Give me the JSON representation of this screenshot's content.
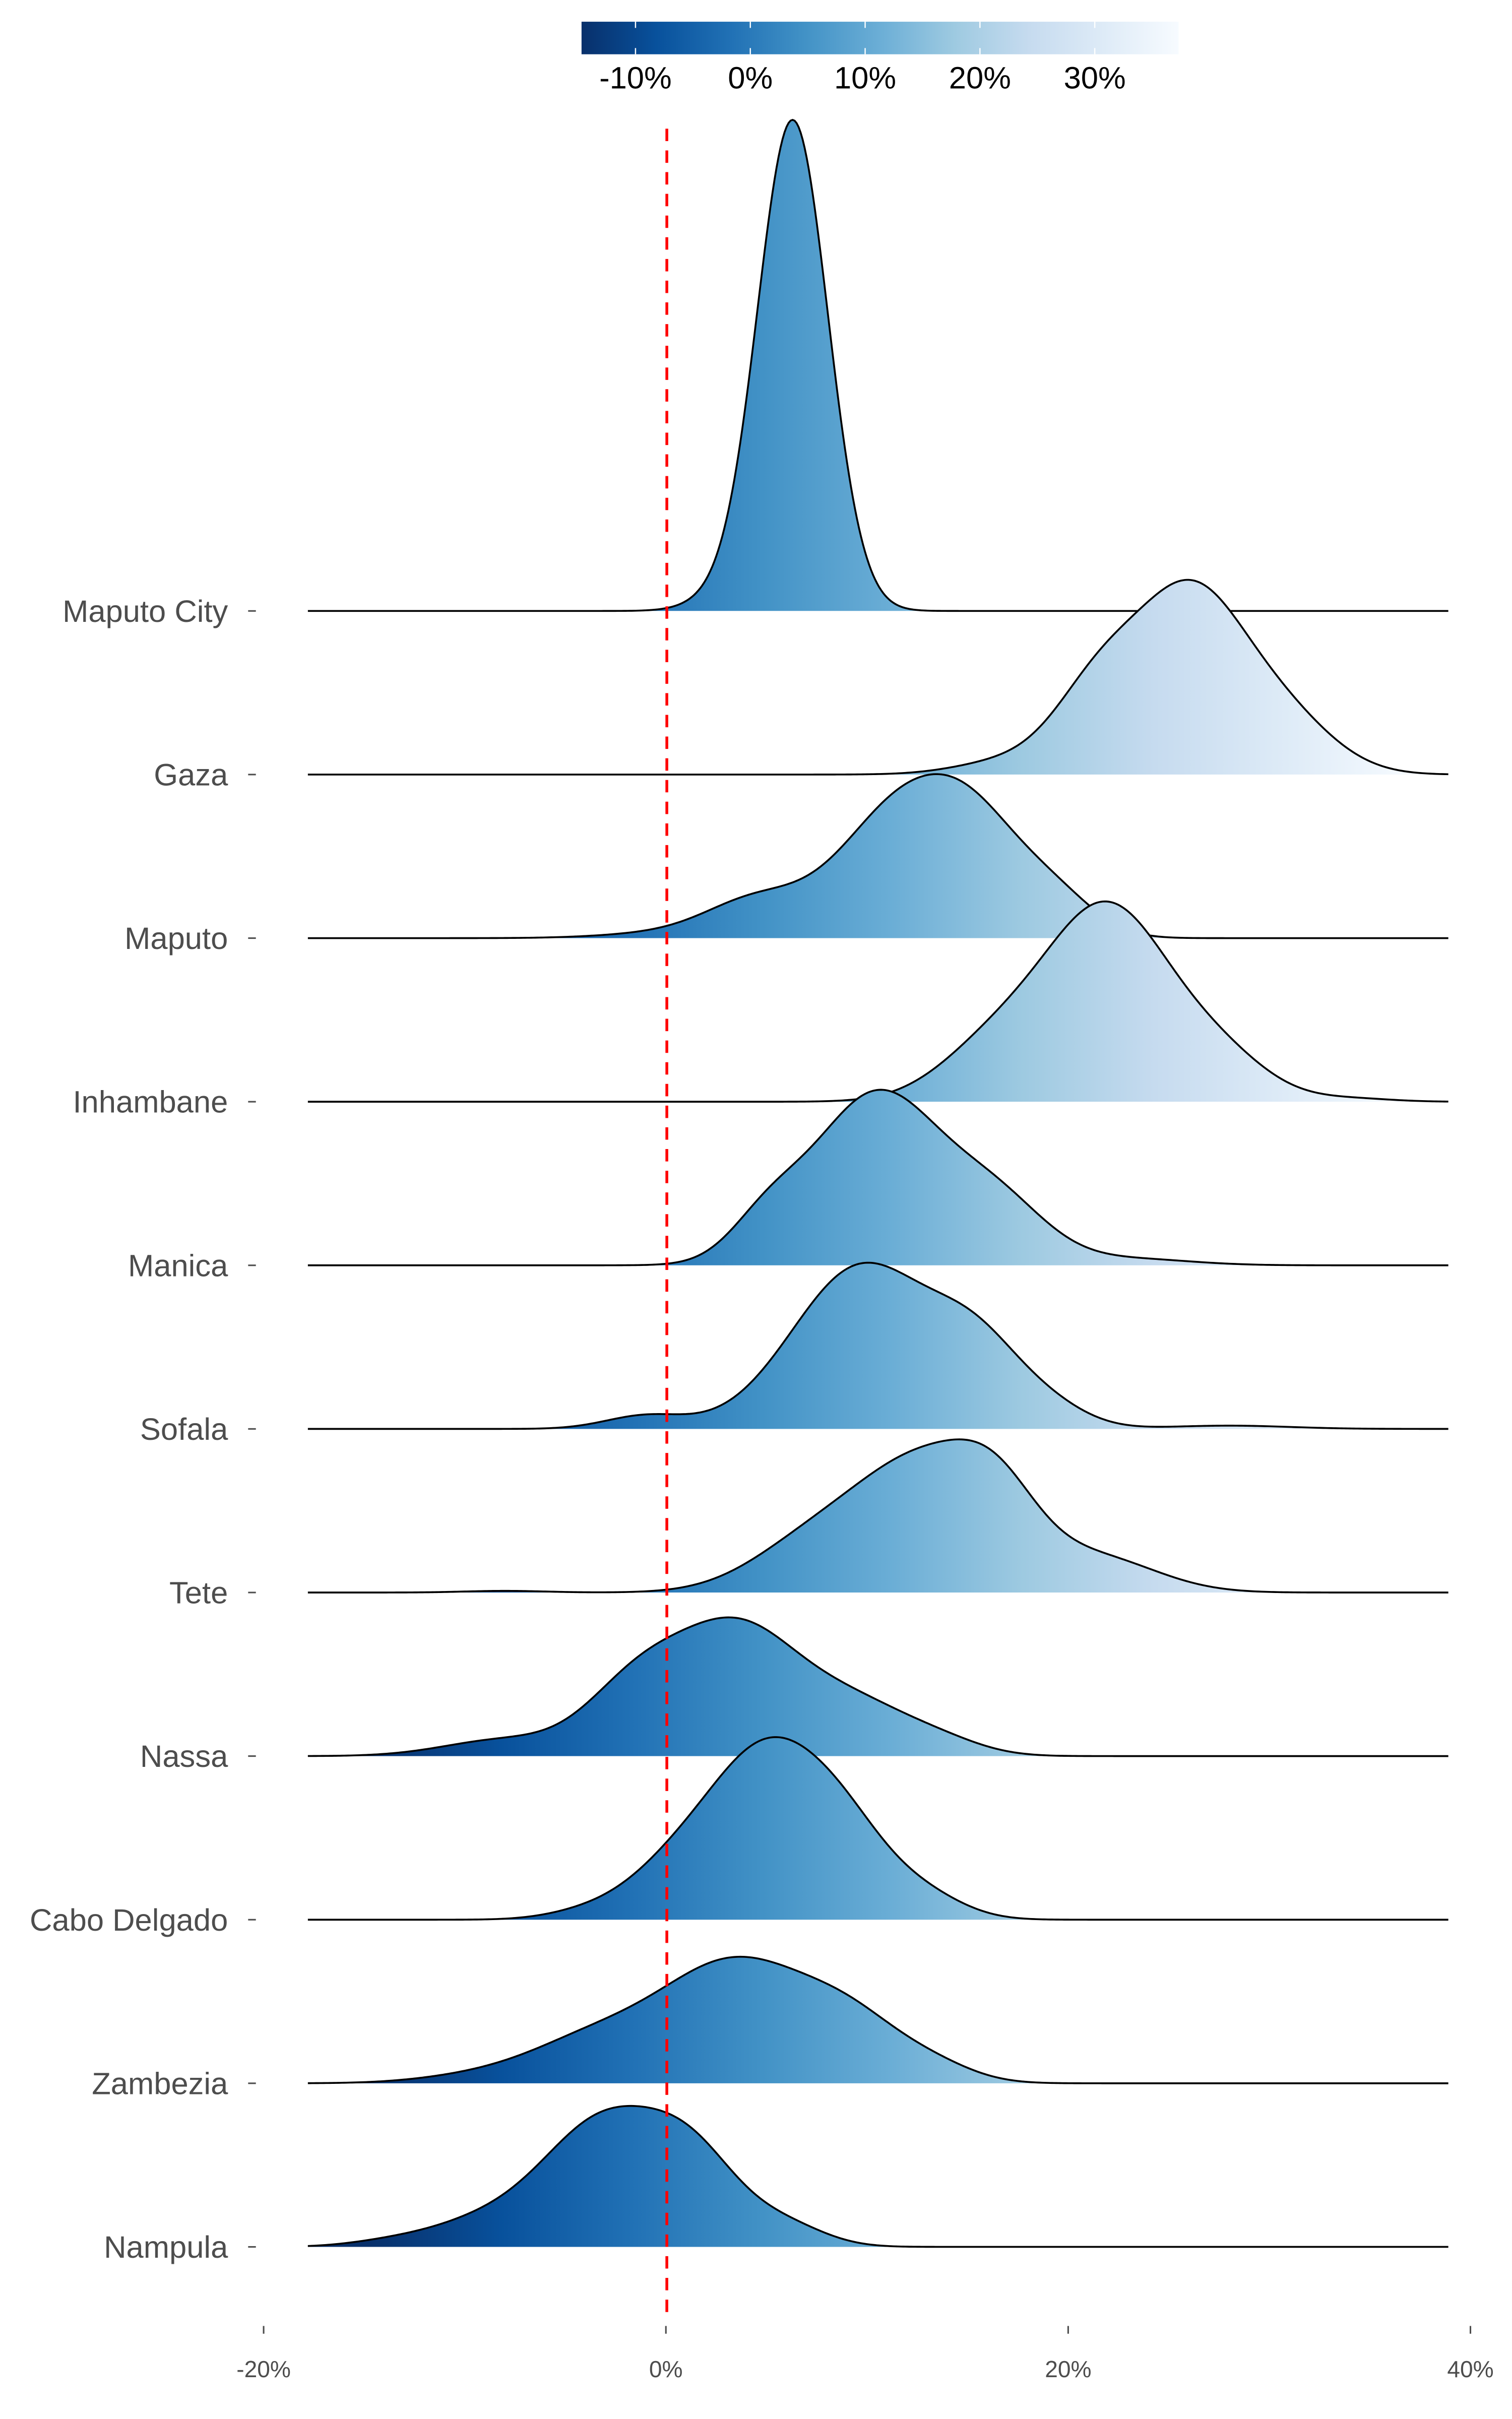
{
  "chart_data": {
    "type": "ridgeline",
    "title": "",
    "xlabel": "",
    "ylabel": "",
    "xlim": [
      -20,
      40
    ],
    "x_range_drawn": [
      -17.8,
      38.9
    ],
    "x_ticks": [
      "-20%",
      "0%",
      "20%",
      "40%"
    ],
    "x_tick_values": [
      -20,
      0,
      20,
      40
    ],
    "reference_line": {
      "x": 0,
      "color": "#ff0000",
      "style": "dashed"
    },
    "colorbar": {
      "range": [
        -14.7,
        37.3
      ],
      "tick_labels": [
        "-10%",
        "0%",
        "10%",
        "20%",
        "30%"
      ],
      "tick_values": [
        -10,
        0,
        10,
        20,
        30
      ],
      "colormap": [
        "#08306b",
        "#08519c",
        "#2171b5",
        "#4292c6",
        "#6baed6",
        "#9ecae1",
        "#c6dbef",
        "#deebf7",
        "#f7fbff"
      ]
    },
    "series_note": "density approximated as gaussian components [mean %, sd %, relative peak height in row-heights]",
    "series": [
      {
        "name": "Maputo City",
        "components": [
          [
            6.3,
            1.75,
            3.0
          ],
          [
            2.5,
            1.5,
            0.05
          ]
        ]
      },
      {
        "name": "Gaza",
        "components": [
          [
            26,
            2.6,
            1.05
          ],
          [
            21.5,
            2.2,
            0.5
          ],
          [
            30.5,
            2.6,
            0.35
          ],
          [
            17,
            2.5,
            0.08
          ]
        ]
      },
      {
        "name": "Maputo",
        "components": [
          [
            11.5,
            3,
            0.75
          ],
          [
            15.5,
            2.5,
            0.55
          ],
          [
            4.5,
            2.5,
            0.22
          ],
          [
            19.5,
            2,
            0.2
          ],
          [
            0,
            3,
            0.03
          ]
        ]
      },
      {
        "name": "Inhambane",
        "components": [
          [
            22,
            3,
            1.15
          ],
          [
            16.5,
            2.8,
            0.35
          ],
          [
            27.5,
            2.5,
            0.25
          ],
          [
            34,
            2,
            0.02
          ]
        ]
      },
      {
        "name": "Manica",
        "components": [
          [
            10.5,
            3.2,
            1.05
          ],
          [
            5,
            1.8,
            0.22
          ],
          [
            16.5,
            2.5,
            0.35
          ],
          [
            23,
            3,
            0.04
          ]
        ]
      },
      {
        "name": "Sofala",
        "components": [
          [
            9.8,
            3.5,
            1.0
          ],
          [
            15.5,
            2.2,
            0.4
          ],
          [
            -1,
            2,
            0.08
          ],
          [
            19,
            2,
            0.12
          ],
          [
            28,
            3,
            0.02
          ]
        ]
      },
      {
        "name": "Tete",
        "components": [
          [
            13,
            3.5,
            0.8
          ],
          [
            16.5,
            2,
            0.3
          ],
          [
            7,
            3,
            0.25
          ],
          [
            21.5,
            3,
            0.2
          ],
          [
            -8,
            2,
            0.01
          ]
        ]
      },
      {
        "name": "Nassa",
        "components": [
          [
            3.5,
            3,
            0.75
          ],
          [
            -1.5,
            2.5,
            0.4
          ],
          [
            9.5,
            3,
            0.3
          ],
          [
            -8,
            3,
            0.1
          ],
          [
            14,
            2,
            0.05
          ]
        ]
      },
      {
        "name": "Cabo Delgado",
        "components": [
          [
            5,
            2.7,
            0.95
          ],
          [
            9,
            2.3,
            0.45
          ],
          [
            0.5,
            2.5,
            0.3
          ],
          [
            13,
            2,
            0.12
          ],
          [
            -4,
            2,
            0.04
          ]
        ]
      },
      {
        "name": "Zambezia",
        "components": [
          [
            3.5,
            4,
            0.75
          ],
          [
            9.5,
            2.5,
            0.25
          ],
          [
            -4,
            3,
            0.2
          ],
          [
            13.5,
            2,
            0.08
          ],
          [
            -9,
            3,
            0.05
          ]
        ]
      },
      {
        "name": "Nampula",
        "components": [
          [
            -3,
            3,
            0.75
          ],
          [
            1.5,
            2.3,
            0.45
          ],
          [
            -9,
            3,
            0.15
          ],
          [
            6,
            2,
            0.12
          ],
          [
            -14,
            2,
            0.02
          ]
        ]
      }
    ]
  }
}
